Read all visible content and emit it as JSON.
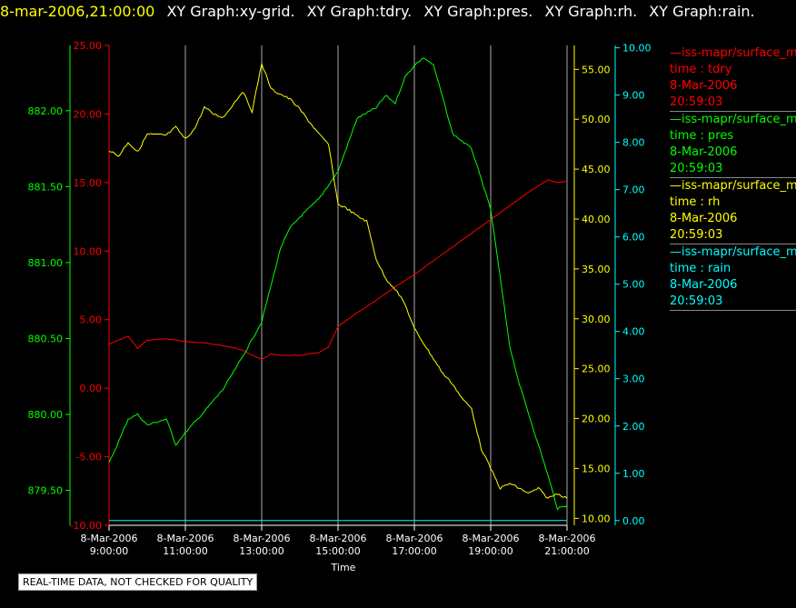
{
  "header": {
    "time": "8-mar-2006,21:00:00",
    "titles": [
      "XY Graph:xy-grid.",
      "XY Graph:tdry.",
      "XY Graph:pres.",
      "XY Graph:rh.",
      "XY Graph:rain."
    ]
  },
  "chart_data": {
    "type": "line",
    "xlabel": "Time",
    "x_ticks": [
      {
        "date": "8-Mar-2006",
        "time": "9:00:00"
      },
      {
        "date": "8-Mar-2006",
        "time": "11:00:00"
      },
      {
        "date": "8-Mar-2006",
        "time": "13:00:00"
      },
      {
        "date": "8-Mar-2006",
        "time": "15:00:00"
      },
      {
        "date": "8-Mar-2006",
        "time": "17:00:00"
      },
      {
        "date": "8-Mar-2006",
        "time": "19:00:00"
      },
      {
        "date": "8-Mar-2006",
        "time": "21:00:00"
      }
    ],
    "x_hours": [
      9,
      11,
      13,
      15,
      17,
      19,
      21
    ],
    "xlim": [
      9,
      21
    ],
    "grid": true,
    "axes": [
      {
        "id": "pres",
        "color": "#00ff00",
        "ticks": [
          "882.00",
          "881.50",
          "881.00",
          "880.50",
          "880.00",
          "879.50"
        ],
        "tick_values": [
          882.0,
          881.5,
          881.0,
          880.5,
          880.0,
          879.5
        ],
        "ylim": [
          879.27,
          882.43
        ]
      },
      {
        "id": "tdry",
        "color": "#ff0000",
        "ticks": [
          "25.00",
          "20.00",
          "15.00",
          "10.00",
          "5.00",
          "0.00",
          "-5.00",
          "-10.00"
        ],
        "tick_values": [
          25,
          20,
          15,
          10,
          5,
          0,
          -5,
          -10
        ],
        "ylim": [
          -10,
          25
        ]
      },
      {
        "id": "rh",
        "color": "#ffff00",
        "ticks": [
          "55.00",
          "50.00",
          "45.00",
          "40.00",
          "35.00",
          "30.00",
          "25.00",
          "20.00",
          "15.00",
          "10.00"
        ],
        "tick_values": [
          55,
          50,
          45,
          40,
          35,
          30,
          25,
          20,
          15,
          10
        ],
        "ylim": [
          9.3,
          57.4
        ]
      },
      {
        "id": "rain",
        "color": "#00ffff",
        "ticks": [
          "10.00",
          "9.00",
          "8.00",
          "7.00",
          "6.00",
          "5.00",
          "4.00",
          "3.00",
          "2.00",
          "1.00",
          "0.00"
        ],
        "tick_values": [
          10,
          9,
          8,
          7,
          6,
          5,
          4,
          3,
          2,
          1,
          0
        ],
        "ylim": [
          -0.1,
          10.05
        ]
      }
    ],
    "series": [
      {
        "name": "tdry",
        "axis": "tdry",
        "color": "#ff0000",
        "x": [
          9,
          9.5,
          9.75,
          10,
          10.5,
          11,
          11.5,
          12,
          12.5,
          12.75,
          13,
          13.25,
          13.5,
          14,
          14.5,
          14.75,
          15,
          15.5,
          16,
          16.5,
          17,
          17.5,
          18,
          18.5,
          19,
          19.5,
          20,
          20.5,
          20.75,
          21
        ],
        "y": [
          3.2,
          3.8,
          2.9,
          3.5,
          3.6,
          3.4,
          3.3,
          3.1,
          2.8,
          2.4,
          2.1,
          2.5,
          2.4,
          2.4,
          2.6,
          3.0,
          4.5,
          5.5,
          6.4,
          7.4,
          8.3,
          9.3,
          10.3,
          11.3,
          12.3,
          13.3,
          14.3,
          15.2,
          15.0,
          15.1
        ]
      },
      {
        "name": "pres",
        "axis": "pres",
        "color": "#00ff00",
        "x": [
          9,
          9.25,
          9.5,
          9.75,
          10,
          10.25,
          10.5,
          10.75,
          11,
          11.5,
          12,
          12.5,
          13,
          13.5,
          13.75,
          14,
          14.5,
          15,
          15.5,
          16,
          16.25,
          16.5,
          16.75,
          17,
          17.25,
          17.5,
          17.75,
          18,
          18.25,
          18.5,
          19,
          19.25,
          19.5,
          19.75,
          20,
          20.25,
          20.5,
          20.75,
          21
        ],
        "y": [
          879.68,
          879.82,
          879.97,
          880.0,
          879.93,
          879.95,
          879.97,
          879.8,
          879.88,
          880.02,
          880.17,
          880.38,
          880.61,
          881.1,
          881.23,
          881.3,
          881.42,
          881.6,
          881.95,
          882.02,
          882.1,
          882.05,
          882.22,
          882.3,
          882.35,
          882.3,
          882.08,
          881.85,
          881.8,
          881.75,
          881.35,
          880.9,
          880.45,
          880.2,
          880.0,
          879.8,
          879.6,
          879.38,
          879.4
        ]
      },
      {
        "name": "rh",
        "axis": "rh",
        "color": "#ffff00",
        "x": [
          9,
          9.25,
          9.5,
          9.75,
          10,
          10.5,
          10.75,
          11,
          11.25,
          11.5,
          11.75,
          12,
          12.25,
          12.5,
          12.75,
          13,
          13.25,
          13.5,
          13.75,
          14,
          14.5,
          14.75,
          15,
          15.25,
          15.5,
          15.75,
          16,
          16.25,
          16.5,
          16.75,
          17,
          17.5,
          17.75,
          18,
          18.25,
          18.5,
          18.75,
          19,
          19.25,
          19.5,
          19.75,
          20,
          20.25,
          20.5,
          20.75,
          21
        ],
        "y": [
          46.9,
          46.3,
          47.7,
          46.7,
          48.5,
          48.4,
          49.2,
          48.0,
          49.1,
          51.2,
          50.5,
          50.2,
          51.5,
          52.8,
          50.8,
          55.6,
          53.0,
          52.5,
          52.0,
          51.0,
          48.5,
          47.5,
          41.5,
          41.0,
          40.3,
          39.8,
          36.0,
          34.0,
          33.0,
          31.5,
          29.0,
          26.0,
          24.5,
          23.5,
          22.0,
          21.0,
          17.0,
          15.0,
          13.0,
          13.5,
          13.0,
          12.5,
          13.0,
          12.0,
          12.5,
          12.0
        ]
      },
      {
        "name": "rain",
        "axis": "rain",
        "color": "#00ffff",
        "x": [
          9,
          21
        ],
        "y": [
          0.0,
          0.0
        ]
      }
    ]
  },
  "legend": [
    {
      "line": "—iss-mapr/surface_m",
      "field": "time : tdry",
      "date": "8-Mar-2006",
      "time": "20:59:03",
      "color": "#ff0000"
    },
    {
      "line": "—iss-mapr/surface_m",
      "field": "time : pres",
      "date": "8-Mar-2006",
      "time": "20:59:03",
      "color": "#00ff00"
    },
    {
      "line": "—iss-mapr/surface_m",
      "field": "time : rh",
      "date": "8-Mar-2006",
      "time": "20:59:03",
      "color": "#ffff00"
    },
    {
      "line": "—iss-mapr/surface_m",
      "field": "time : rain",
      "date": "8-Mar-2006",
      "time": "20:59:03",
      "color": "#00ffff"
    }
  ],
  "footer": {
    "label": "REAL-TIME DATA, NOT CHECKED FOR QUALITY"
  },
  "colors": {
    "background": "#000000",
    "grid": "#ffffff",
    "axis_text": "#ffffff"
  }
}
